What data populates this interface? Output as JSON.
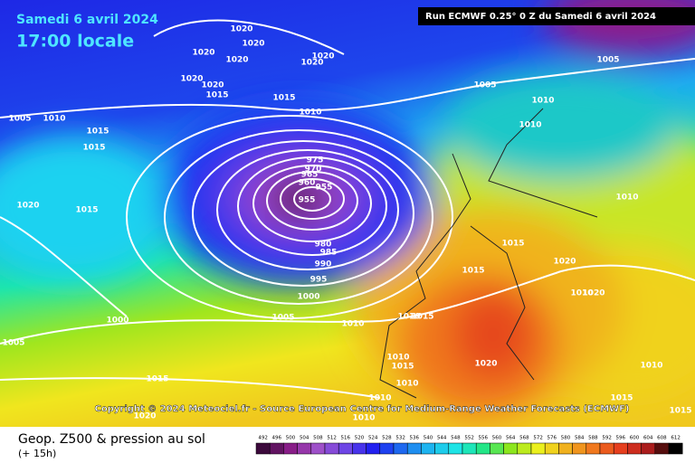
{
  "header": {
    "date": "Samedi 6 avril 2024",
    "time": "17:00 locale",
    "run": "Run ECMWF 0.25° 0 Z du Samedi 6 avril 2024"
  },
  "copyright": "Copyright © 2024 Meteociel.fr - Source European Centre for Medium-Range Weather Forecasts (ECMWF)",
  "footer": {
    "title": "Geop. Z500 & pression au sol",
    "lead": "(+ 15h)"
  },
  "legend": {
    "values": [
      492,
      496,
      500,
      504,
      508,
      512,
      516,
      520,
      524,
      528,
      532,
      536,
      540,
      544,
      548,
      552,
      556,
      560,
      564,
      568,
      572,
      576,
      580,
      584,
      588,
      592,
      596,
      600,
      604,
      608,
      612
    ]
  },
  "isobar_labels": [
    "1020",
    "1020",
    "1020",
    "1020",
    "1020",
    "1020",
    "1020",
    "1020",
    "1015",
    "1015",
    "1005",
    "1005",
    "1010",
    "1005",
    "1010",
    "1015",
    "1015",
    "1010",
    "1010",
    "975",
    "970",
    "965",
    "960",
    "955",
    "955",
    "1020",
    "1015",
    "1010",
    "980",
    "985",
    "990",
    "995",
    "1000",
    "1015",
    "1020",
    "1015",
    "1010",
    "1020",
    "1005",
    "1000",
    "1010",
    "1015",
    "1010",
    "1005",
    "1010",
    "1015",
    "1020",
    "1010",
    "1015",
    "1010",
    "1010",
    "1020",
    "1010",
    "1015",
    "1015"
  ]
}
